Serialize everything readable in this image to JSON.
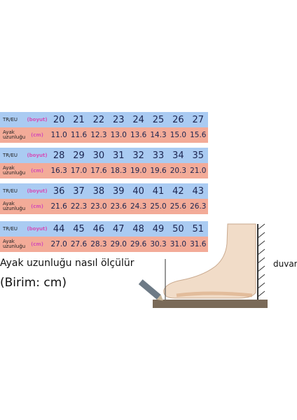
{
  "size_tables": [
    {
      "size_label": "TR/EU",
      "size_unit": "(boyut)",
      "len_label_1": "Ayak",
      "len_label_2": "uzunluğu",
      "len_unit": "(cm)",
      "sizes": [
        "20",
        "21",
        "22",
        "23",
        "24",
        "25",
        "26",
        "27"
      ],
      "lengths": [
        "11.0",
        "11.6",
        "12.3",
        "13.0",
        "13.6",
        "14.3",
        "15.0",
        "15.6"
      ]
    },
    {
      "size_label": "TR/EU",
      "size_unit": "(boyut)",
      "len_label_1": "Ayak",
      "len_label_2": "uzunluğu",
      "len_unit": "(cm)",
      "sizes": [
        "28",
        "29",
        "30",
        "31",
        "32",
        "33",
        "34",
        "35"
      ],
      "lengths": [
        "16.3",
        "17.0",
        "17.6",
        "18.3",
        "19.0",
        "19.6",
        "20.3",
        "21.0"
      ]
    },
    {
      "size_label": "TR/EU",
      "size_unit": "(boyut)",
      "len_label_1": "Ayak",
      "len_label_2": "uzunluğu",
      "len_unit": "(cm)",
      "sizes": [
        "36",
        "37",
        "38",
        "39",
        "40",
        "41",
        "42",
        "43"
      ],
      "lengths": [
        "21.6",
        "22.3",
        "23.0",
        "23.6",
        "24.3",
        "25.0",
        "25.6",
        "26.3"
      ]
    },
    {
      "size_label": "TR/EU",
      "size_unit": "(boyut)",
      "len_label_1": "Ayak",
      "len_label_2": "uzunluğu",
      "len_unit": "(cm)",
      "sizes": [
        "44",
        "45",
        "46",
        "47",
        "48",
        "49",
        "50",
        "51"
      ],
      "lengths": [
        "27.0",
        "27.6",
        "28.3",
        "29.0",
        "29.6",
        "30.3",
        "31.0",
        "31.6"
      ]
    }
  ],
  "caption_measure": "Ayak uzunluğu nasıl ölçülür",
  "caption_unit": "(Birim: cm)",
  "wall_label": "duvar",
  "colors": {
    "size_row": "#aacbf2",
    "length_row": "#f3ab98",
    "unit_text": "#d44fb7",
    "value_text": "#1c2550"
  }
}
